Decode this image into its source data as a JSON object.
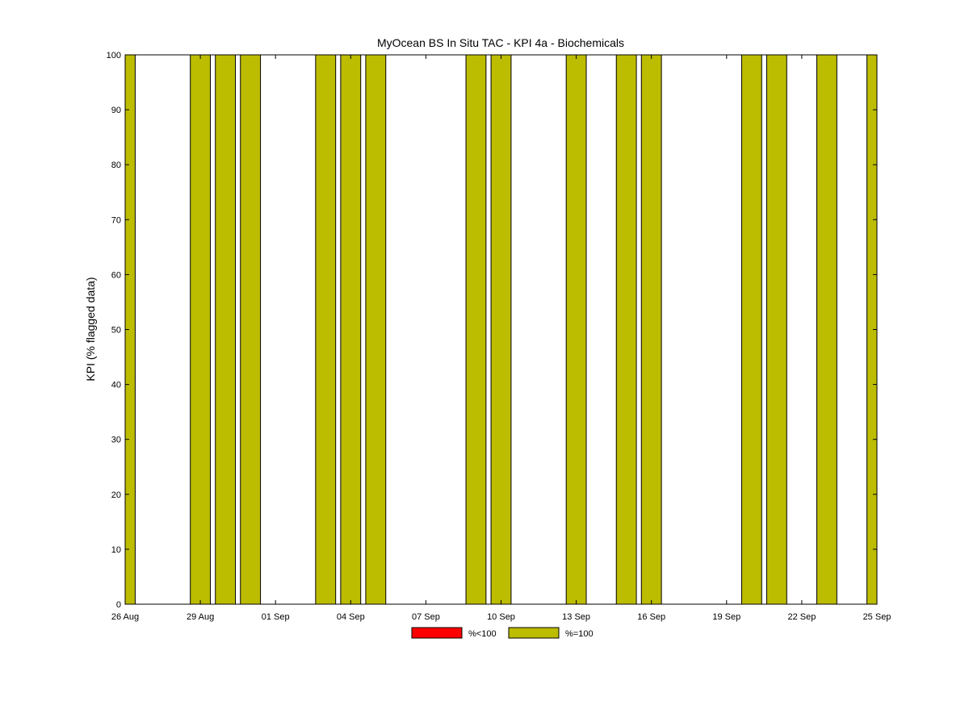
{
  "chart_data": {
    "type": "bar",
    "title": "MyOcean  BS In Situ TAC - KPI 4a - Biochemicals",
    "xlabel": "",
    "ylabel": "KPI (% flagged data)",
    "ylim": [
      0,
      100
    ],
    "yticks": [
      0,
      10,
      20,
      30,
      40,
      50,
      60,
      70,
      80,
      90,
      100
    ],
    "xlim": [
      "2012-08-26",
      "2012-09-25"
    ],
    "xtick_dates": [
      "2012-08-26",
      "2012-08-29",
      "2012-09-01",
      "2012-09-04",
      "2012-09-07",
      "2012-09-10",
      "2012-09-13",
      "2012-09-16",
      "2012-09-19",
      "2012-09-22",
      "2012-09-25"
    ],
    "xtick_labels": [
      "26 Aug",
      "29 Aug",
      "01 Sep",
      "04 Sep",
      "07 Sep",
      "10 Sep",
      "13 Sep",
      "16 Sep",
      "19 Sep",
      "22 Sep",
      "25 Sep"
    ],
    "grid": false,
    "legend_position": "bottom",
    "series": [
      {
        "name": "%<100",
        "color": "#ff0000",
        "bars": []
      },
      {
        "name": "%=100",
        "color": "#bcbc00",
        "bars": [
          {
            "date": "2012-08-26",
            "value": 100
          },
          {
            "date": "2012-08-29",
            "value": 100
          },
          {
            "date": "2012-08-30",
            "value": 100
          },
          {
            "date": "2012-08-31",
            "value": 100
          },
          {
            "date": "2012-09-03",
            "value": 100
          },
          {
            "date": "2012-09-04",
            "value": 100
          },
          {
            "date": "2012-09-05",
            "value": 100
          },
          {
            "date": "2012-09-09",
            "value": 100
          },
          {
            "date": "2012-09-10",
            "value": 100
          },
          {
            "date": "2012-09-13",
            "value": 100
          },
          {
            "date": "2012-09-15",
            "value": 100
          },
          {
            "date": "2012-09-16",
            "value": 100
          },
          {
            "date": "2012-09-20",
            "value": 100
          },
          {
            "date": "2012-09-21",
            "value": 100
          },
          {
            "date": "2012-09-23",
            "value": 100
          },
          {
            "date": "2012-09-25",
            "value": 100
          }
        ]
      }
    ]
  }
}
